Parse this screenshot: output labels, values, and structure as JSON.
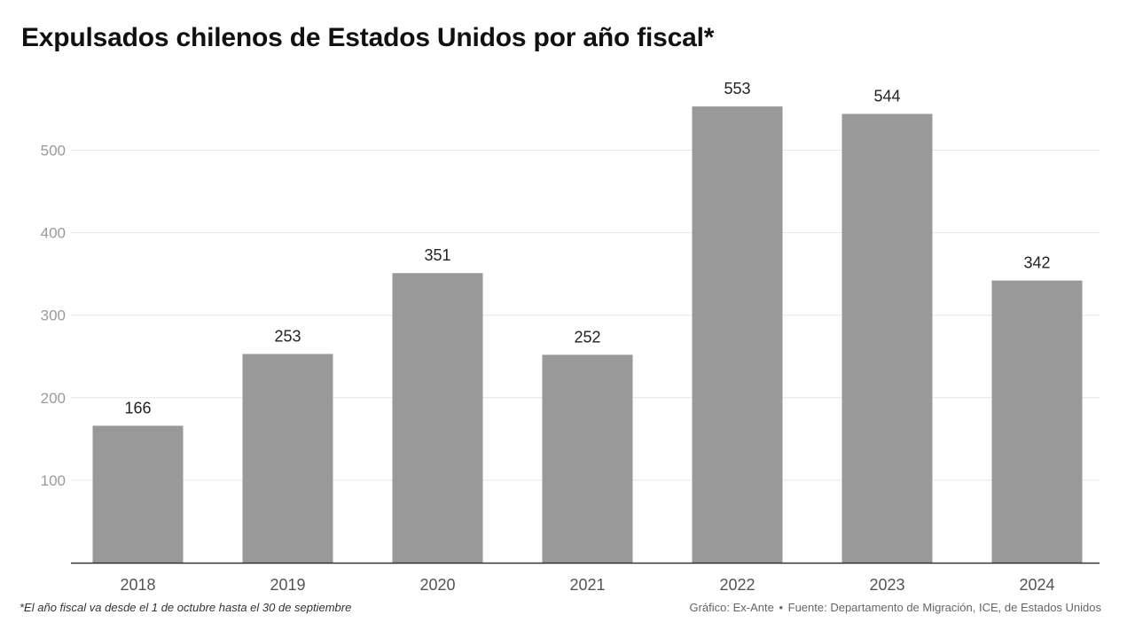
{
  "chart_data": {
    "type": "bar",
    "title": "Expulsados chilenos de Estados Unidos por año fiscal*",
    "categories": [
      "2018",
      "2019",
      "2020",
      "2021",
      "2022",
      "2023",
      "2024"
    ],
    "values": [
      166,
      253,
      351,
      252,
      553,
      544,
      342
    ],
    "yticks": [
      100,
      200,
      300,
      400,
      500
    ],
    "ylim": [
      0,
      600
    ],
    "xlabel": "",
    "ylabel": "",
    "grid": true,
    "bar_color": "#999999",
    "gridline_color": "#e6e6e6",
    "axis_color": "#333333",
    "label_color": "#222222",
    "tick_color": "#9a9a9a"
  },
  "footnote": "*El año fiscal va desde el 1 de octubre hasta el 30 de septiembre",
  "credit": {
    "chart_by": "Gráfico: Ex-Ante",
    "separator": "•",
    "source": "Fuente: Departamento de Migración, ICE, de Estados Unidos"
  }
}
